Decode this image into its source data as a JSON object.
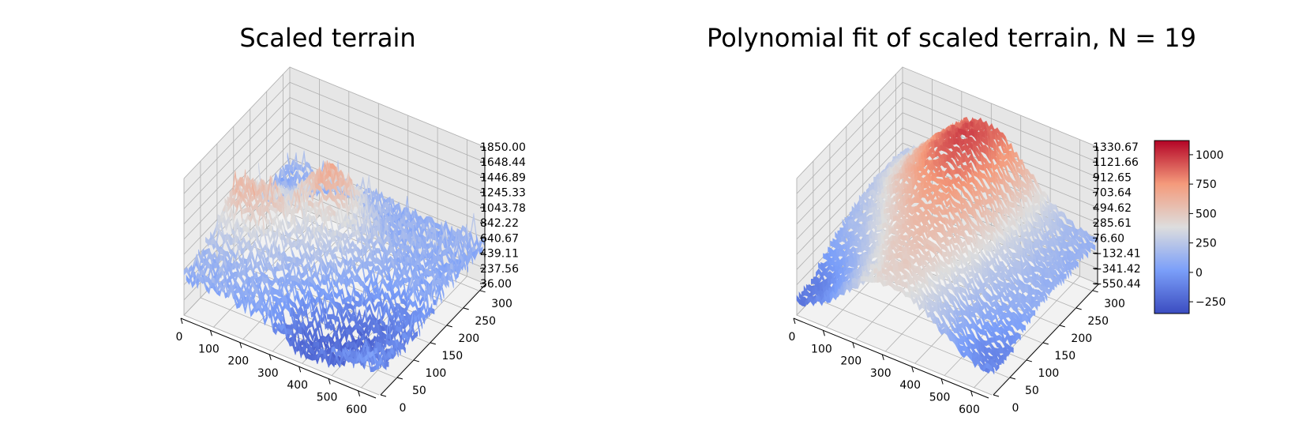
{
  "chart_data": [
    {
      "type": "surface3d",
      "title": "Scaled terrain",
      "xlabel": "",
      "ylabel": "",
      "zlabel": "",
      "x_ticks": [
        "0",
        "100",
        "200",
        "300",
        "400",
        "500",
        "600"
      ],
      "y_ticks": [
        "0",
        "50",
        "100",
        "150",
        "200",
        "250",
        "300"
      ],
      "z_ticks": [
        "36.00",
        "237.56",
        "439.11",
        "640.67",
        "842.22",
        "1043.78",
        "1245.33",
        "1446.89",
        "1648.44",
        "1850.00"
      ],
      "xlim": [
        0,
        660
      ],
      "ylim": [
        0,
        320
      ],
      "zlim": [
        36,
        1850
      ],
      "colormap": "coolwarm",
      "colorbar": false,
      "grid": true
    },
    {
      "type": "surface3d",
      "title": "Polynomial fit of scaled terrain, N = 19",
      "xlabel": "",
      "ylabel": "",
      "zlabel": "",
      "x_ticks": [
        "0",
        "100",
        "200",
        "300",
        "400",
        "500",
        "600"
      ],
      "y_ticks": [
        "0",
        "50",
        "100",
        "150",
        "200",
        "250",
        "300"
      ],
      "z_ticks": [
        "−550.44",
        "−341.42",
        "−132.41",
        "76.60",
        "285.61",
        "494.62",
        "703.64",
        "912.65",
        "1121.66",
        "1330.67"
      ],
      "xlim": [
        0,
        660
      ],
      "ylim": [
        0,
        320
      ],
      "zlim": [
        -550.44,
        1330.67
      ],
      "colormap": "coolwarm",
      "colorbar": true,
      "colorbar_ticks": [
        "−250",
        "0",
        "250",
        "500",
        "750",
        "1000"
      ],
      "colorbar_range": [
        -350,
        1120
      ],
      "grid": true
    }
  ]
}
